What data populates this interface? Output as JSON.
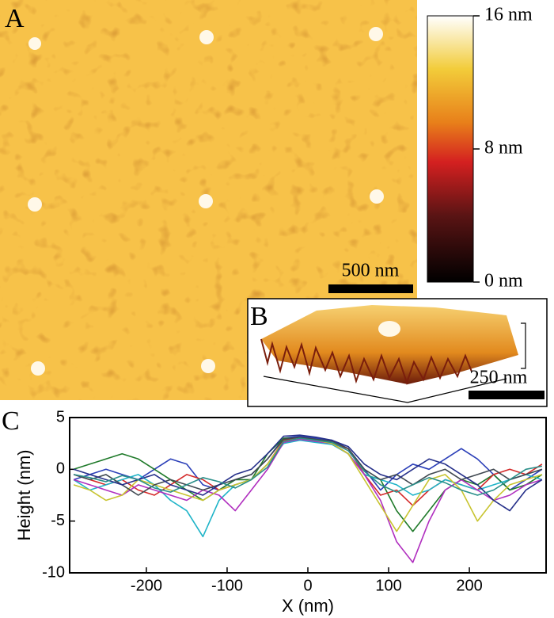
{
  "panel_labels": [
    "A",
    "B",
    "C"
  ],
  "colorbar": {
    "lim": [
      0,
      16
    ],
    "ticks": [
      {
        "value": 16,
        "label": "16 nm"
      },
      {
        "value": 8,
        "label": "8 nm"
      },
      {
        "value": 0,
        "label": "0 nm"
      }
    ]
  },
  "scale_bars": [
    "500 nm",
    "250 nm"
  ],
  "chart_data": {
    "type": "line",
    "xlabel": "X (nm)",
    "ylabel": "Height (nm)",
    "xlim": [
      -295,
      295
    ],
    "ylim": [
      -10,
      5
    ],
    "xticks": [
      -200,
      -100,
      0,
      100,
      200
    ],
    "yticks": [
      -10,
      -5,
      0,
      5
    ],
    "x": [
      -290,
      -270,
      -250,
      -230,
      -210,
      -190,
      -170,
      -150,
      -130,
      -110,
      -90,
      -70,
      -50,
      -30,
      -10,
      10,
      30,
      50,
      70,
      90,
      110,
      130,
      150,
      170,
      190,
      210,
      230,
      250,
      270,
      290
    ],
    "series": [
      {
        "color": "#2b3fb8",
        "values": [
          -1,
          -0.5,
          0,
          -0.5,
          -1,
          0,
          1,
          0.5,
          -1.5,
          -2,
          -1,
          -0.5,
          1,
          3,
          3.2,
          3,
          2.8,
          2,
          0,
          -2,
          -0.5,
          0.5,
          0,
          1,
          2,
          1,
          -0.5,
          -2,
          -1,
          0
        ]
      },
      {
        "color": "#1f7a2a",
        "values": [
          0,
          0.5,
          1,
          1.5,
          1,
          0,
          -1,
          -2,
          -3,
          -2,
          -1,
          -1,
          1.5,
          3,
          3,
          2.8,
          2.5,
          1.5,
          -0.5,
          -1,
          -4,
          -6,
          -4,
          -2,
          -1,
          -1.5,
          -0.5,
          -2,
          -1.5,
          -0.5
        ]
      },
      {
        "color": "#d42a2a",
        "values": [
          -0.5,
          -1,
          -1.5,
          -1,
          -2,
          -2.5,
          -1.5,
          -0.5,
          -1,
          -2,
          -1.5,
          -1,
          0.5,
          2.8,
          3,
          2.8,
          2.5,
          2,
          -0.5,
          -2.5,
          -2,
          -3.5,
          -2,
          -1,
          -1.5,
          -2,
          -0.5,
          0,
          -0.5,
          0.5
        ]
      },
      {
        "color": "#1fb4c8",
        "values": [
          -1,
          -2,
          -1.5,
          -1,
          -0.5,
          -1.5,
          -3,
          -4,
          -6.5,
          -3,
          -1.5,
          -1,
          0.5,
          2.5,
          2.8,
          2.6,
          2.4,
          1.5,
          -0.5,
          -1,
          -1.5,
          -2.5,
          -2,
          -1,
          -1.5,
          -2,
          -1.5,
          -1,
          -0.5,
          -1
        ]
      },
      {
        "color": "#b02fbf",
        "values": [
          -1,
          -1.5,
          -2,
          -2.5,
          -1.5,
          -2,
          -2.5,
          -3,
          -2,
          -2.5,
          -4,
          -2,
          0,
          2.6,
          2.9,
          2.7,
          2.5,
          1.5,
          -0.5,
          -3,
          -7,
          -9,
          -5,
          -2,
          -1,
          -2,
          -3,
          -2.5,
          -1.5,
          -1
        ]
      },
      {
        "color": "#c8c430",
        "values": [
          -1.5,
          -2,
          -3,
          -2.5,
          -1,
          -1.5,
          -2,
          -2.5,
          -3,
          -2,
          -1.5,
          -1,
          0.5,
          2.7,
          3,
          2.8,
          2.5,
          1.5,
          -1,
          -3.5,
          -6,
          -3.5,
          -1,
          -0.5,
          -2,
          -5,
          -3,
          -1.5,
          -1,
          -0.5
        ]
      },
      {
        "color": "#404850",
        "values": [
          -0.5,
          -1,
          -0.5,
          -1.5,
          -2.5,
          -1.5,
          -1,
          -1.5,
          -2,
          -1.5,
          -1,
          -0.5,
          1,
          2.9,
          3.1,
          2.9,
          2.7,
          2,
          0,
          -1,
          -0.5,
          -1.5,
          -0.5,
          0,
          -1,
          -0.5,
          0,
          -1,
          -0.5,
          0
        ]
      },
      {
        "color": "#26308a",
        "values": [
          0,
          -0.5,
          -1,
          -1.5,
          -1,
          -0.5,
          -1.5,
          -2,
          -2.5,
          -1.5,
          -0.5,
          0,
          1.5,
          3.2,
          3.3,
          3.1,
          2.8,
          2.2,
          0.5,
          -0.5,
          -1,
          0,
          1,
          0.5,
          -0.5,
          -1.5,
          -3,
          -4,
          -2,
          -1
        ]
      },
      {
        "color": "#2a8f8a",
        "values": [
          -0.5,
          -0.8,
          -1.2,
          -0.6,
          -1,
          -1.8,
          -2.2,
          -1.5,
          -0.8,
          -1.2,
          -1.8,
          -1,
          0.2,
          2.7,
          3,
          2.8,
          2.6,
          1.8,
          -0.2,
          -1.5,
          -2.2,
          -1.5,
          -0.8,
          -1.3,
          -2,
          -2.5,
          -2,
          -1,
          0,
          0.3
        ]
      }
    ]
  }
}
